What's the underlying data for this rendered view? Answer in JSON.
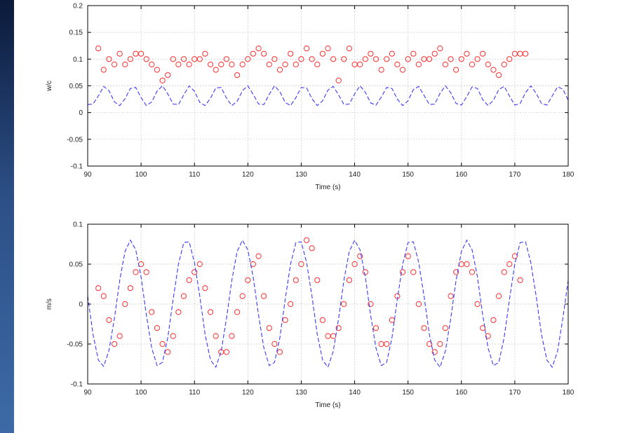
{
  "colors": {
    "background_frame": "#000000",
    "left_edge": "#2c4f86",
    "measured_series": "#ff2a2a",
    "model_series": "#3a3aff"
  },
  "chart_data": [
    {
      "type": "line",
      "xlabel": "Time (s)",
      "ylabel": "w/c",
      "xlim": [
        90,
        180
      ],
      "ylim": [
        -0.1,
        0.2
      ],
      "xticks": [
        90,
        100,
        110,
        120,
        130,
        140,
        150,
        160,
        170,
        180
      ],
      "xtick_labels": [
        "90",
        "100",
        "110",
        "120",
        "130",
        "140",
        "150",
        "160",
        "170",
        "180"
      ],
      "yticks": [
        -0.1,
        -0.05,
        0,
        0.05,
        0.1,
        0.15,
        0.2
      ],
      "ytick_labels": [
        "-0.1",
        "-0.05",
        "0",
        "0.05",
        "0.1",
        "0.15",
        "0.2"
      ],
      "grid": true,
      "series": [
        {
          "style": "markers-circle",
          "color": "#ff2a2a",
          "x": [
            92,
            93,
            94,
            95,
            96,
            97,
            98,
            99,
            100,
            101,
            102,
            103,
            104,
            105,
            106,
            107,
            108,
            109,
            110,
            111,
            112,
            113,
            114,
            115,
            116,
            117,
            118,
            119,
            120,
            121,
            122,
            123,
            124,
            125,
            126,
            127,
            128,
            129,
            130,
            131,
            132,
            133,
            134,
            135,
            136,
            137,
            138,
            139,
            140,
            141,
            142,
            143,
            144,
            145,
            146,
            147,
            148,
            149,
            150,
            151,
            152,
            153,
            154,
            155,
            156,
            157,
            158,
            159,
            160,
            161,
            162,
            163,
            164,
            165,
            166,
            167,
            168,
            169,
            170,
            171,
            172
          ],
          "y": [
            0.12,
            0.08,
            0.1,
            0.09,
            0.11,
            0.09,
            0.1,
            0.11,
            0.11,
            0.1,
            0.09,
            0.08,
            0.06,
            0.07,
            0.1,
            0.09,
            0.1,
            0.09,
            0.1,
            0.1,
            0.11,
            0.09,
            0.08,
            0.09,
            0.1,
            0.09,
            0.07,
            0.09,
            0.1,
            0.11,
            0.12,
            0.11,
            0.09,
            0.1,
            0.08,
            0.09,
            0.11,
            0.09,
            0.1,
            0.12,
            0.1,
            0.09,
            0.11,
            0.12,
            0.1,
            0.06,
            0.1,
            0.12,
            0.09,
            0.09,
            0.1,
            0.11,
            0.1,
            0.08,
            0.1,
            0.11,
            0.09,
            0.08,
            0.1,
            0.11,
            0.09,
            0.1,
            0.1,
            0.11,
            0.12,
            0.09,
            0.1,
            0.08,
            0.1,
            0.11,
            0.09,
            0.1,
            0.11,
            0.09,
            0.08,
            0.07,
            0.09,
            0.1,
            0.11,
            0.11,
            0.11
          ]
        },
        {
          "style": "line-dashed",
          "color": "#3a3aff",
          "x": [
            90,
            91,
            92,
            93,
            94,
            95,
            96,
            97,
            98,
            99,
            100,
            101,
            102,
            103,
            104,
            105,
            106,
            107,
            108,
            109,
            110,
            111,
            112,
            113,
            114,
            115,
            116,
            117,
            118,
            119,
            120,
            121,
            122,
            123,
            124,
            125,
            126,
            127,
            128,
            129,
            130,
            131,
            132,
            133,
            134,
            135,
            136,
            137,
            138,
            139,
            140,
            141,
            142,
            143,
            144,
            145,
            146,
            147,
            148,
            149,
            150,
            151,
            152,
            153,
            154,
            155,
            156,
            157,
            158,
            159,
            160,
            161,
            162,
            163,
            164,
            165,
            166,
            167,
            168,
            169,
            170,
            171,
            172,
            173,
            174,
            175,
            176,
            177,
            178,
            179,
            180
          ],
          "y": [
            0.015,
            0.016,
            0.031,
            0.049,
            0.041,
            0.02,
            0.013,
            0.026,
            0.045,
            0.047,
            0.028,
            0.013,
            0.02,
            0.04,
            0.05,
            0.035,
            0.016,
            0.015,
            0.033,
            0.05,
            0.04,
            0.019,
            0.013,
            0.027,
            0.046,
            0.047,
            0.027,
            0.013,
            0.021,
            0.041,
            0.05,
            0.034,
            0.016,
            0.015,
            0.034,
            0.05,
            0.039,
            0.019,
            0.013,
            0.028,
            0.047,
            0.046,
            0.026,
            0.013,
            0.022,
            0.042,
            0.049,
            0.033,
            0.015,
            0.016,
            0.035,
            0.05,
            0.038,
            0.018,
            0.014,
            0.029,
            0.047,
            0.045,
            0.025,
            0.013,
            0.022,
            0.043,
            0.049,
            0.032,
            0.015,
            0.016,
            0.036,
            0.05,
            0.037,
            0.017,
            0.014,
            0.03,
            0.048,
            0.045,
            0.024,
            0.013,
            0.023,
            0.043,
            0.049,
            0.031,
            0.014,
            0.017,
            0.037,
            0.05,
            0.036,
            0.017,
            0.014,
            0.031,
            0.048,
            0.044,
            0.023
          ]
        }
      ]
    },
    {
      "type": "line",
      "xlabel": "Time (s)",
      "ylabel": "m/s",
      "xlim": [
        90,
        180
      ],
      "ylim": [
        -0.1,
        0.1
      ],
      "xticks": [
        90,
        100,
        110,
        120,
        130,
        140,
        150,
        160,
        170,
        180
      ],
      "xtick_labels": [
        "90",
        "100",
        "110",
        "120",
        "130",
        "140",
        "150",
        "160",
        "170",
        "180"
      ],
      "yticks": [
        -0.1,
        -0.05,
        0,
        0.05,
        0.1
      ],
      "ytick_labels": [
        "-0.1",
        "-0.05",
        "0",
        "0.05",
        "0.1"
      ],
      "grid": true,
      "series": [
        {
          "style": "markers-circle",
          "color": "#ff2a2a",
          "x": [
            92,
            93,
            94,
            95,
            96,
            97,
            98,
            99,
            100,
            101,
            102,
            103,
            104,
            105,
            106,
            107,
            108,
            109,
            110,
            111,
            112,
            113,
            114,
            115,
            116,
            117,
            118,
            119,
            120,
            121,
            122,
            123,
            124,
            125,
            126,
            127,
            128,
            129,
            130,
            131,
            132,
            133,
            134,
            135,
            136,
            137,
            138,
            139,
            140,
            141,
            142,
            143,
            144,
            145,
            146,
            147,
            148,
            149,
            150,
            151,
            152,
            153,
            154,
            155,
            156,
            157,
            158,
            159,
            160,
            161,
            162,
            163,
            164,
            165,
            166,
            167,
            168,
            169,
            170,
            171
          ],
          "y": [
            0.02,
            0.01,
            -0.02,
            -0.05,
            -0.04,
            0.0,
            0.02,
            0.04,
            0.05,
            0.04,
            -0.01,
            -0.03,
            -0.05,
            -0.06,
            -0.04,
            -0.01,
            0.01,
            0.03,
            0.04,
            0.05,
            0.02,
            -0.01,
            -0.04,
            -0.06,
            -0.06,
            -0.04,
            -0.01,
            0.01,
            0.03,
            0.05,
            0.06,
            0.01,
            -0.03,
            -0.05,
            -0.06,
            -0.02,
            0.0,
            0.03,
            0.05,
            0.08,
            0.07,
            0.03,
            -0.02,
            -0.04,
            -0.04,
            -0.03,
            0.0,
            0.03,
            0.05,
            0.06,
            0.04,
            0.0,
            -0.03,
            -0.05,
            -0.05,
            -0.02,
            0.01,
            0.04,
            0.06,
            0.04,
            0.0,
            -0.03,
            -0.05,
            -0.06,
            -0.05,
            -0.03,
            0.01,
            0.04,
            0.05,
            0.05,
            0.04,
            0.0,
            -0.03,
            -0.04,
            -0.02,
            0.01,
            0.04,
            0.05,
            0.06,
            0.03
          ]
        },
        {
          "style": "line-dashed",
          "color": "#3a3aff",
          "x": [
            90,
            91,
            92,
            93,
            94,
            95,
            96,
            97,
            98,
            99,
            100,
            101,
            102,
            103,
            104,
            105,
            106,
            107,
            108,
            109,
            110,
            111,
            112,
            113,
            114,
            115,
            116,
            117,
            118,
            119,
            120,
            121,
            122,
            123,
            124,
            125,
            126,
            127,
            128,
            129,
            130,
            131,
            132,
            133,
            134,
            135,
            136,
            137,
            138,
            139,
            140,
            141,
            142,
            143,
            144,
            145,
            146,
            147,
            148,
            149,
            150,
            151,
            152,
            153,
            154,
            155,
            156,
            157,
            158,
            159,
            160,
            161,
            162,
            163,
            164,
            165,
            166,
            167,
            168,
            169,
            170,
            171,
            172,
            173,
            174,
            175,
            176,
            177,
            178,
            179,
            180
          ],
          "y": [
            0.01,
            -0.038,
            -0.07,
            -0.078,
            -0.058,
            -0.018,
            0.03,
            0.066,
            0.08,
            0.068,
            0.034,
            -0.014,
            -0.055,
            -0.077,
            -0.073,
            -0.042,
            0.006,
            0.05,
            0.077,
            0.078,
            0.052,
            0.01,
            -0.038,
            -0.07,
            -0.079,
            -0.059,
            -0.018,
            0.03,
            0.066,
            0.08,
            0.068,
            0.034,
            -0.014,
            -0.055,
            -0.077,
            -0.073,
            -0.042,
            0.006,
            0.05,
            0.077,
            0.078,
            0.052,
            0.01,
            -0.038,
            -0.07,
            -0.079,
            -0.059,
            -0.018,
            0.03,
            0.066,
            0.08,
            0.068,
            0.034,
            -0.014,
            -0.055,
            -0.077,
            -0.073,
            -0.042,
            0.006,
            0.05,
            0.077,
            0.078,
            0.052,
            0.01,
            -0.038,
            -0.07,
            -0.079,
            -0.059,
            -0.018,
            0.03,
            0.066,
            0.08,
            0.068,
            0.034,
            -0.014,
            -0.055,
            -0.077,
            -0.073,
            -0.042,
            0.006,
            0.05,
            0.077,
            0.078,
            0.052,
            0.01,
            -0.038,
            -0.07,
            -0.079,
            -0.059,
            -0.018,
            0.03
          ]
        }
      ]
    }
  ]
}
